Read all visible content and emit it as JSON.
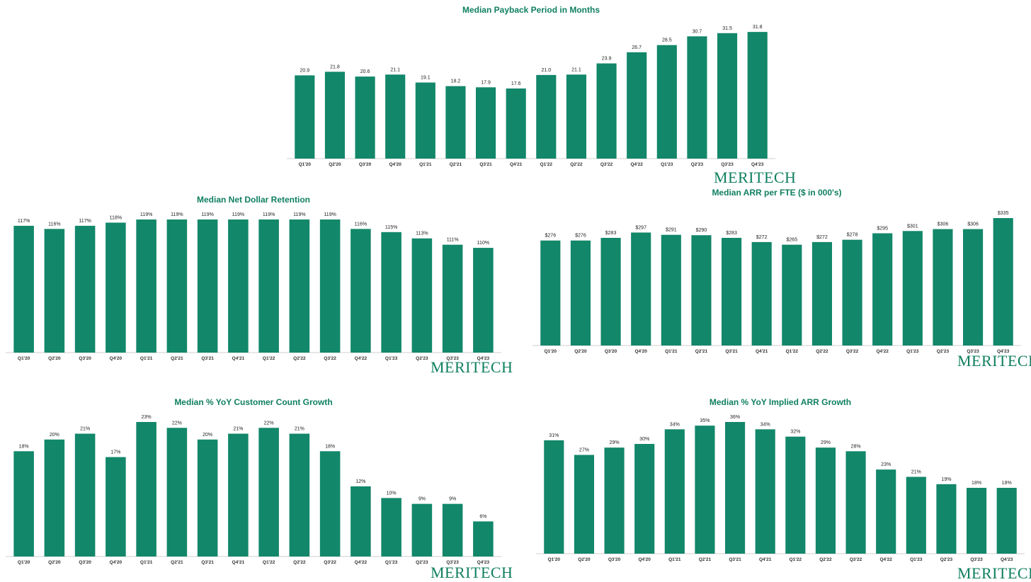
{
  "brand": {
    "logo_text": "MERITECH",
    "bar_color": "#12876a",
    "title_color": "#0f7f5f"
  },
  "chart_data": [
    {
      "id": "payback",
      "type": "bar",
      "title": "Median Payback Period in Months",
      "categories": [
        "Q1'20",
        "Q2'20",
        "Q3'20",
        "Q4'20",
        "Q1'21",
        "Q2'21",
        "Q3'21",
        "Q4'21",
        "Q1'22",
        "Q2'22",
        "Q3'22",
        "Q4'22",
        "Q1'23",
        "Q2'23",
        "Q3'23",
        "Q4'23"
      ],
      "values": [
        20.9,
        21.8,
        20.6,
        21.1,
        19.1,
        18.2,
        17.9,
        17.6,
        21.0,
        21.1,
        23.9,
        26.7,
        28.5,
        30.7,
        31.5,
        31.8
      ],
      "labels": [
        "20.9",
        "21.8",
        "20.6",
        "21.1",
        "19.1",
        "18.2",
        "17.9",
        "17.6",
        "21.0",
        "21.1",
        "23.9",
        "26.7",
        "28.5",
        "30.7",
        "31.5",
        "31.8"
      ],
      "ylim": [
        0,
        32
      ]
    },
    {
      "id": "ndr",
      "type": "bar",
      "title": "Median Net Dollar Retention",
      "categories": [
        "Q1'20",
        "Q2'20",
        "Q3'20",
        "Q4'20",
        "Q1'21",
        "Q2'21",
        "Q3'21",
        "Q4'21",
        "Q1'22",
        "Q2'22",
        "Q3'22",
        "Q4'22",
        "Q1'23",
        "Q2'23",
        "Q3'23",
        "Q4'23"
      ],
      "values": [
        117,
        116,
        117,
        118,
        119,
        119,
        119,
        119,
        119,
        119,
        119,
        116,
        115,
        113,
        111,
        110
      ],
      "labels": [
        "117%",
        "116%",
        "117%",
        "118%",
        "119%",
        "119%",
        "119%",
        "119%",
        "119%",
        "119%",
        "119%",
        "116%",
        "115%",
        "113%",
        "111%",
        "110%"
      ],
      "ylim": [
        100,
        119
      ]
    },
    {
      "id": "arr_fte",
      "type": "bar",
      "title": "Median ARR per FTE ($ in 000's)",
      "categories": [
        "Q1'20",
        "Q2'20",
        "Q3'20",
        "Q4'20",
        "Q1'21",
        "Q2'21",
        "Q3'21",
        "Q4'21",
        "Q1'22",
        "Q2'22",
        "Q3'22",
        "Q4'22",
        "Q1'23",
        "Q2'23",
        "Q3'23",
        "Q4'23"
      ],
      "values": [
        276,
        276,
        283,
        297,
        291,
        290,
        283,
        272,
        265,
        272,
        278,
        295,
        301,
        306,
        306,
        335
      ],
      "labels": [
        "$276",
        "$276",
        "$283",
        "$297",
        "$291",
        "$290",
        "$283",
        "$272",
        "$265",
        "$272",
        "$278",
        "$295",
        "$301",
        "$306",
        "$306",
        "$335"
      ],
      "ylim": [
        0,
        335
      ]
    },
    {
      "id": "customer_growth",
      "type": "bar",
      "title": "Median % YoY Customer Count Growth",
      "categories": [
        "Q1'20",
        "Q2'20",
        "Q3'20",
        "Q4'20",
        "Q1'21",
        "Q2'21",
        "Q3'21",
        "Q4'21",
        "Q1'22",
        "Q2'22",
        "Q3'22",
        "Q4'22",
        "Q1'23",
        "Q2'23",
        "Q3'23",
        "Q4'23"
      ],
      "values": [
        18,
        20,
        21,
        17,
        23,
        22,
        20,
        21,
        22,
        21,
        18,
        12,
        10,
        9,
        9,
        6
      ],
      "labels": [
        "18%",
        "20%",
        "21%",
        "17%",
        "23%",
        "22%",
        "20%",
        "21%",
        "22%",
        "21%",
        "18%",
        "12%",
        "10%",
        "9%",
        "9%",
        "6%"
      ],
      "ylim": [
        0,
        23
      ]
    },
    {
      "id": "arr_growth",
      "type": "bar",
      "title": "Median % YoY Implied ARR Growth",
      "categories": [
        "Q1'20",
        "Q2'20",
        "Q3'20",
        "Q4'20",
        "Q1'21",
        "Q2'21",
        "Q3'21",
        "Q4'21",
        "Q1'22",
        "Q2'22",
        "Q3'22",
        "Q4'22",
        "Q1'23",
        "Q2'23",
        "Q3'23",
        "Q4'23"
      ],
      "values": [
        31,
        27,
        29,
        30,
        34,
        35,
        36,
        34,
        32,
        29,
        28,
        23,
        21,
        19,
        18,
        18
      ],
      "labels": [
        "31%",
        "27%",
        "29%",
        "30%",
        "34%",
        "35%",
        "36%",
        "34%",
        "32%",
        "29%",
        "28%",
        "23%",
        "21%",
        "19%",
        "18%",
        "18%"
      ],
      "ylim": [
        0,
        36
      ]
    }
  ]
}
